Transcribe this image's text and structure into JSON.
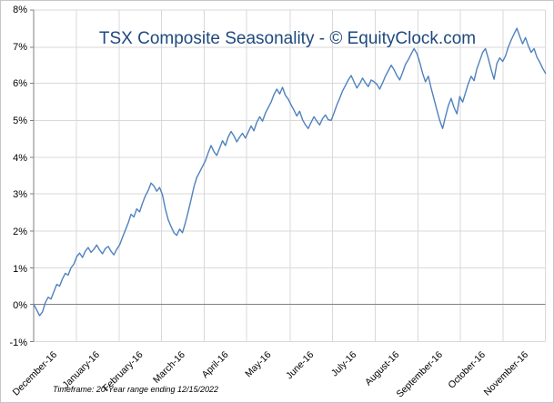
{
  "chart_data": {
    "type": "line",
    "title": "TSX Composite Seasonality - © EquityClock.com",
    "footnote": "Timeframe: 20-Year range ending 12/15/2022",
    "categories": [
      "December-16",
      "January-16",
      "February-16",
      "March-16",
      "April-16",
      "May-16",
      "June-16",
      "July-16",
      "August-16",
      "September-16",
      "October-16",
      "November-16"
    ],
    "ytick_labels": [
      "8%",
      "7%",
      "6%",
      "5%",
      "4%",
      "3%",
      "2%",
      "1%",
      "0%",
      "-1%"
    ],
    "ytick_values": [
      8,
      7,
      6,
      5,
      4,
      3,
      2,
      1,
      0,
      -1
    ],
    "ylim": [
      -1,
      8
    ],
    "grid": true,
    "legend": "none",
    "xlabel": "",
    "ylabel": "",
    "values": [
      0.0,
      -0.15,
      -0.3,
      -0.2,
      0.05,
      0.2,
      0.15,
      0.35,
      0.55,
      0.5,
      0.7,
      0.85,
      0.8,
      1.0,
      1.1,
      1.3,
      1.4,
      1.28,
      1.45,
      1.55,
      1.42,
      1.5,
      1.62,
      1.48,
      1.38,
      1.52,
      1.58,
      1.45,
      1.35,
      1.5,
      1.62,
      1.82,
      2.02,
      2.22,
      2.45,
      2.38,
      2.6,
      2.52,
      2.75,
      2.95,
      3.1,
      3.3,
      3.22,
      3.08,
      3.18,
      2.98,
      2.6,
      2.3,
      2.12,
      1.95,
      1.88,
      2.05,
      1.95,
      2.22,
      2.52,
      2.85,
      3.2,
      3.45,
      3.6,
      3.75,
      3.9,
      4.12,
      4.32,
      4.15,
      4.05,
      4.25,
      4.45,
      4.32,
      4.55,
      4.7,
      4.58,
      4.42,
      4.55,
      4.65,
      4.52,
      4.68,
      4.85,
      4.72,
      4.95,
      5.1,
      4.98,
      5.2,
      5.35,
      5.5,
      5.7,
      5.85,
      5.72,
      5.9,
      5.68,
      5.58,
      5.42,
      5.28,
      5.12,
      5.25,
      5.02,
      4.88,
      4.78,
      4.95,
      5.1,
      4.98,
      4.88,
      5.05,
      5.15,
      5.02,
      5.0,
      5.2,
      5.42,
      5.6,
      5.8,
      5.95,
      6.1,
      6.22,
      6.05,
      5.88,
      6.0,
      6.15,
      6.02,
      5.92,
      6.1,
      6.05,
      5.98,
      5.85,
      6.02,
      6.2,
      6.35,
      6.5,
      6.38,
      6.22,
      6.1,
      6.3,
      6.52,
      6.65,
      6.8,
      6.95,
      6.82,
      6.58,
      6.28,
      6.05,
      6.2,
      5.88,
      5.58,
      5.28,
      5.0,
      4.78,
      5.1,
      5.4,
      5.6,
      5.35,
      5.18,
      5.65,
      5.5,
      5.75,
      6.0,
      6.2,
      6.08,
      6.4,
      6.62,
      6.85,
      6.95,
      6.68,
      6.38,
      6.12,
      6.55,
      6.7,
      6.6,
      6.75,
      7.0,
      7.18,
      7.35,
      7.5,
      7.28,
      7.08,
      7.25,
      7.02,
      6.85,
      6.95,
      6.72,
      6.58,
      6.42,
      6.28
    ],
    "colors": {
      "line": "#4F81BD",
      "grid": "#d9d9d9",
      "axis": "#808080",
      "title": "#1F497D",
      "text": "#000000",
      "frame": "#c6c6c6"
    }
  }
}
